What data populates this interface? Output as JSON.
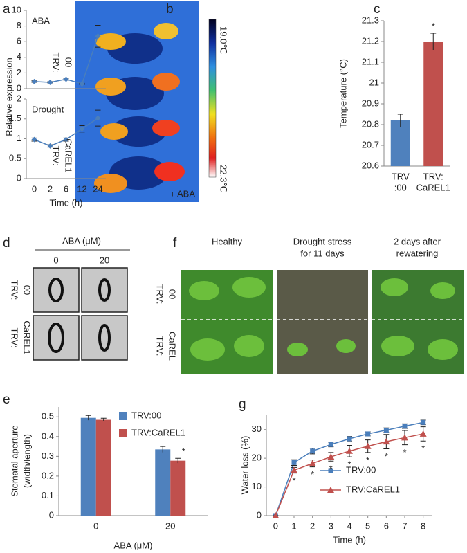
{
  "chart_data": [
    {
      "type": "line",
      "label": "a",
      "annotation": "ABA",
      "ylabel": "Relative expression",
      "ylim": [
        0,
        10
      ],
      "yticks": [
        0,
        2,
        4,
        6,
        8,
        10
      ],
      "series": [
        {
          "color": "#4a7ebb",
          "marker": "diamond",
          "values": [
            0.9,
            0.8,
            1.2,
            0.6,
            6.7
          ],
          "errors": [
            0.1,
            0.08,
            0.12,
            0.08,
            1.4
          ]
        }
      ]
    },
    {
      "type": "line",
      "annotation": "Drought",
      "xlabel": "Time (h)",
      "categories": [
        "0",
        "2",
        "6",
        "12",
        "24"
      ],
      "ylim": [
        0,
        2
      ],
      "yticks": [
        0,
        0.5,
        1,
        1.5,
        2
      ],
      "series": [
        {
          "color": "#4a7ebb",
          "marker": "diamond",
          "values": [
            0.98,
            0.82,
            0.98,
            1.25,
            1.52
          ],
          "errors": [
            0.04,
            0.03,
            0.04,
            0.08,
            0.2
          ]
        }
      ]
    },
    {
      "type": "bar",
      "label": "c",
      "ylabel": "Temperature (°C)",
      "categories": [
        [
          "TRV",
          ":00"
        ],
        [
          "TRV:",
          "CaREL1"
        ]
      ],
      "values": [
        20.82,
        21.2
      ],
      "errors": [
        0.03,
        0.04
      ],
      "colors": [
        "#4f81bd",
        "#c0504d"
      ],
      "significance": [
        null,
        "*"
      ],
      "ylim": [
        20.6,
        21.3
      ],
      "yticks": [
        20.6,
        20.7,
        20.8,
        20.9,
        21,
        21.1,
        21.2,
        21.3
      ]
    },
    {
      "type": "bar",
      "label": "e",
      "ylabel": [
        "Stomatal aperture",
        "(width/length)"
      ],
      "xlabel": "ABA (μM)",
      "categories": [
        "0",
        "20"
      ],
      "ylim": [
        0,
        0.55
      ],
      "yticks": [
        0,
        0.1,
        0.2,
        0.3,
        0.4,
        0.5
      ],
      "series": [
        {
          "name": "TRV:00",
          "color": "#4f81bd",
          "values": [
            0.495,
            0.335
          ],
          "errors": [
            0.012,
            0.015
          ]
        },
        {
          "name": "TRV:CaREL1",
          "color": "#c0504d",
          "values": [
            0.485,
            0.278
          ],
          "errors": [
            0.008,
            0.012
          ],
          "significance": [
            null,
            "*"
          ]
        }
      ]
    },
    {
      "type": "line",
      "label": "g",
      "ylabel": "Water loss (%)",
      "xlabel": "Time (h)",
      "x": [
        0,
        1,
        2,
        3,
        4,
        5,
        6,
        7,
        8
      ],
      "xlim": [
        -0.5,
        8.5
      ],
      "xticks": [
        0,
        1,
        2,
        3,
        4,
        5,
        6,
        7,
        8
      ],
      "ylim": [
        0,
        35
      ],
      "yticks": [
        0,
        10,
        20,
        30
      ],
      "series": [
        {
          "name": "TRV:00",
          "color": "#4a7ebb",
          "marker": "square",
          "values": [
            0,
            18.5,
            22.5,
            24.8,
            26.8,
            28.5,
            29.8,
            31.2,
            32.5
          ],
          "errors": [
            0,
            1,
            1,
            0.8,
            0.8,
            0.7,
            0.8,
            0.8,
            0.8
          ]
        },
        {
          "name": "TRV:CaREL1",
          "color": "#c0504d",
          "marker": "triangle",
          "values": [
            0,
            15.8,
            18.2,
            20.5,
            22.5,
            24.2,
            25.8,
            27.2,
            28.5
          ],
          "errors": [
            0,
            1,
            1.2,
            1.5,
            2,
            2.2,
            2.5,
            2.5,
            2.5
          ],
          "significance": [
            null,
            "*",
            "*",
            "*",
            "*",
            "*",
            "*",
            "*",
            "*"
          ]
        }
      ]
    }
  ],
  "panel_b": {
    "label": "b",
    "rows": [
      [
        "TRV:",
        "00"
      ],
      [
        "TRV:",
        "CaREL1"
      ]
    ],
    "treatment": "+ ABA",
    "colorbar": [
      "19.0℃",
      "22.3℃"
    ]
  },
  "panel_d": {
    "label": "d",
    "header": "ABA (μM)",
    "columns": [
      "0",
      "20"
    ],
    "rows": [
      [
        "TRV:",
        "00"
      ],
      [
        "TRV:",
        "CaREL1"
      ]
    ]
  },
  "panel_f": {
    "label": "f",
    "columns": [
      [
        "Healthy"
      ],
      [
        "Drought stress",
        "for 11 days"
      ],
      [
        "2 days after",
        "rewatering"
      ]
    ],
    "rows": [
      [
        "TRV:",
        "00"
      ],
      [
        "TRV:",
        "CaREL"
      ]
    ]
  }
}
